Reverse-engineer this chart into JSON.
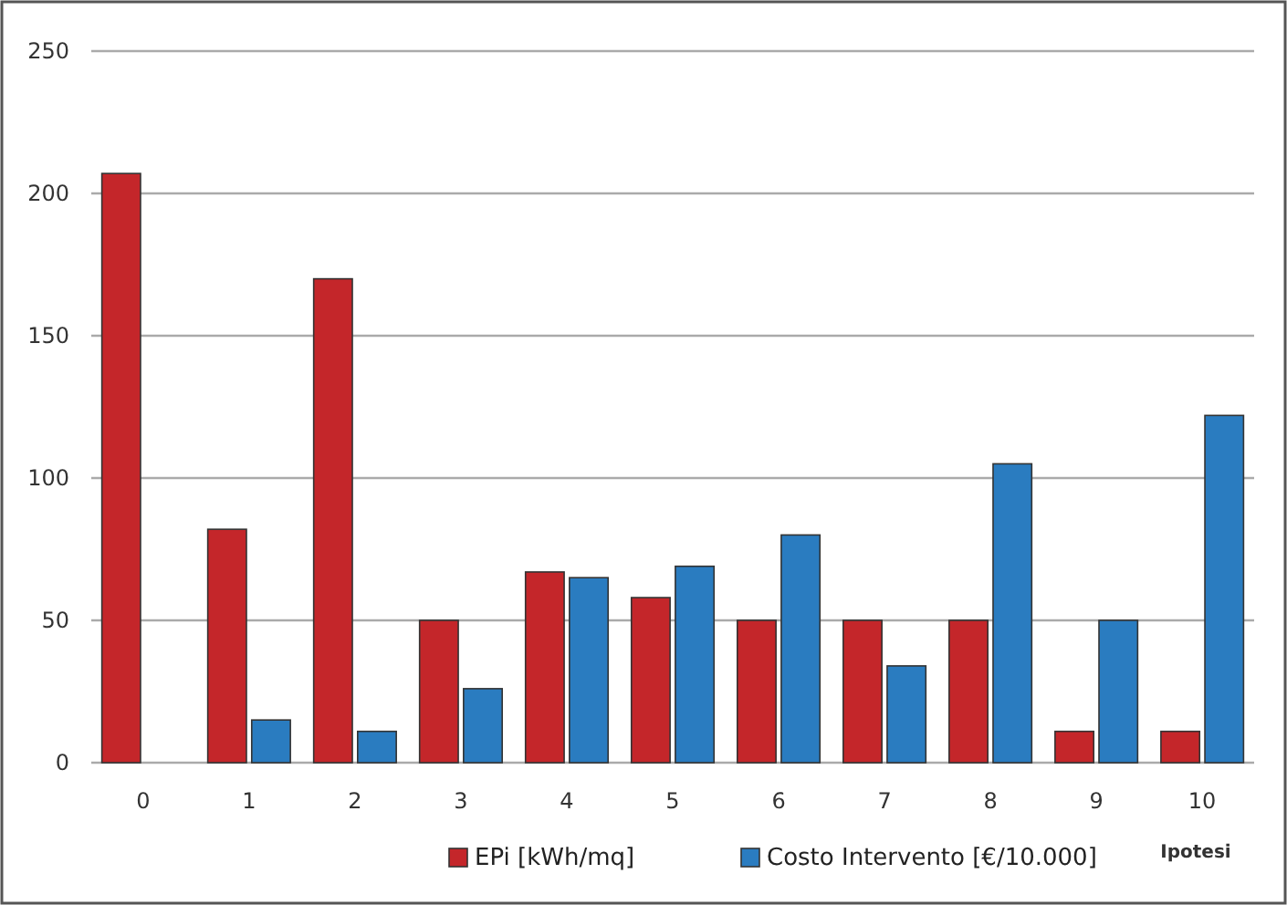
{
  "chart_data": {
    "type": "bar",
    "xlabel": "Ipotesi",
    "categories": [
      "0",
      "1",
      "2",
      "3",
      "4",
      "5",
      "6",
      "7",
      "8",
      "9",
      "10"
    ],
    "series": [
      {
        "name": "EPi [kWh/mq]",
        "color": "#c4262a",
        "values": [
          207,
          82,
          170,
          50,
          67,
          58,
          50,
          50,
          50,
          11,
          11
        ]
      },
      {
        "name": "Costo Intervento [€/10.000]",
        "color": "#2a7cc0",
        "values": [
          null,
          15,
          11,
          26,
          65,
          69,
          80,
          34,
          105,
          50,
          122
        ]
      }
    ],
    "ylim": [
      0,
      250
    ],
    "yticks": [
      0,
      50,
      100,
      150,
      200,
      250
    ],
    "grid": "y",
    "legend": "bottom"
  }
}
